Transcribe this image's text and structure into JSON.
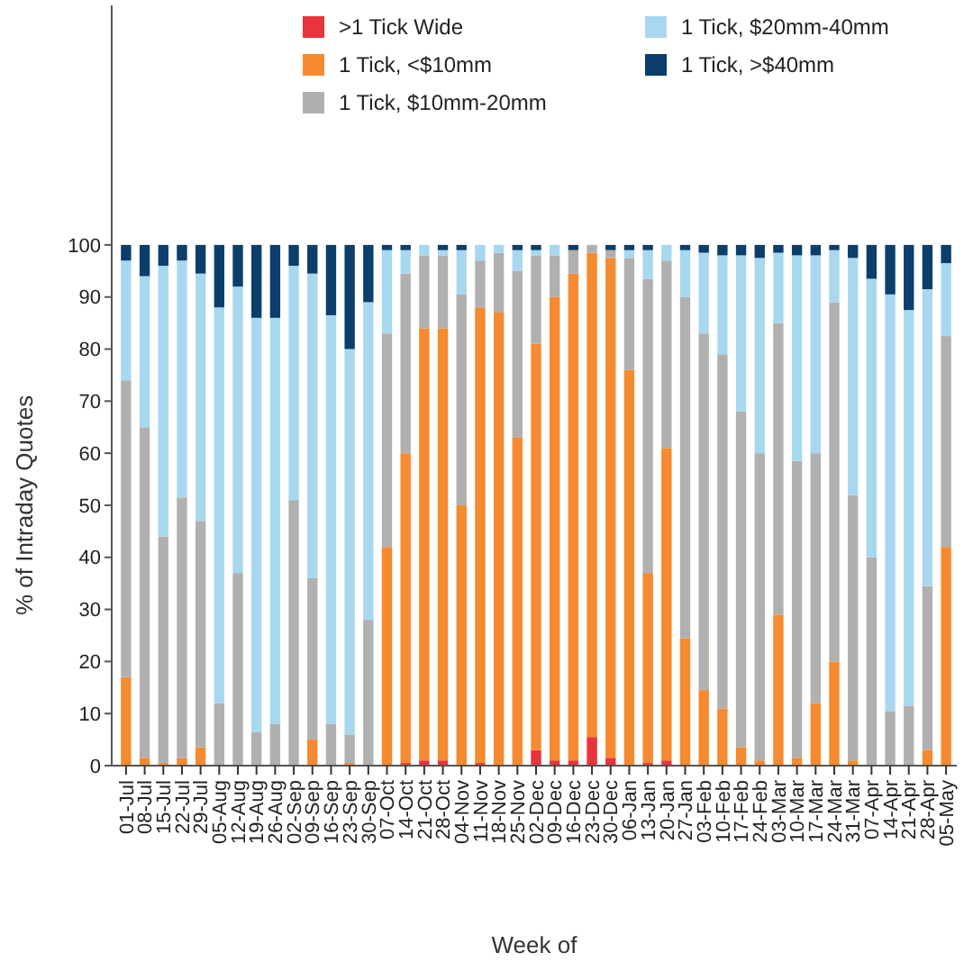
{
  "chart_data": {
    "type": "bar",
    "stacked": true,
    "xlabel": "Week of",
    "ylabel": "% of Intraday Quotes",
    "categories": [
      "01-Jul",
      "08-Jul",
      "15-Jul",
      "22-Jul",
      "29-Jul",
      "05-Aug",
      "12-Aug",
      "19-Aug",
      "26-Aug",
      "02-Sep",
      "09-Sep",
      "16-Sep",
      "23-Sep",
      "30-Sep",
      "07-Oct",
      "14-Oct",
      "21-Oct",
      "28-Oct",
      "04-Nov",
      "11-Nov",
      "18-Nov",
      "25-Nov",
      "02-Dec",
      "09-Dec",
      "16-Dec",
      "23-Dec",
      "30-Dec",
      "06-Jan",
      "13-Jan",
      "20-Jan",
      "27-Jan",
      "03-Feb",
      "10-Feb",
      "17-Feb",
      "24-Feb",
      "03-Mar",
      "10-Mar",
      "17-Mar",
      "24-Mar",
      "31-Mar",
      "07-Apr",
      "14-Apr",
      "21-Apr",
      "28-Apr",
      "05-May"
    ],
    "series": [
      {
        "name": ">1 Tick Wide",
        "color": "#e8343a",
        "values": [
          0,
          0,
          0,
          0,
          0,
          0,
          0,
          0,
          0,
          0,
          0,
          0,
          0,
          0,
          0,
          0.5,
          1,
          1,
          0,
          0.5,
          0,
          0,
          3,
          1,
          1,
          5.5,
          1.5,
          0,
          0.5,
          1,
          0,
          0,
          0,
          0,
          0,
          0,
          0,
          0,
          0,
          0,
          0,
          0,
          0,
          0,
          0
        ]
      },
      {
        "name": "1 Tick, <$10mm",
        "color": "#f58a2e",
        "values": [
          17,
          1.5,
          0.5,
          1.5,
          3.5,
          0,
          0,
          0,
          0,
          0,
          5,
          0,
          0.5,
          0,
          42,
          59.5,
          83,
          83,
          50,
          87.5,
          87,
          63,
          78,
          89,
          93.5,
          93,
          96,
          76,
          36.5,
          60,
          24.5,
          14.5,
          11,
          3.5,
          1,
          29,
          1.5,
          12,
          20,
          1,
          0,
          0,
          0,
          3,
          42
        ]
      },
      {
        "name": "1 Tick, $10mm-20mm",
        "color": "#b0b0b0",
        "values": [
          57,
          63.5,
          43.5,
          50,
          43.5,
          12,
          37,
          6.5,
          8,
          51,
          31,
          8,
          5.5,
          28,
          41,
          34.5,
          14,
          14,
          40.5,
          9,
          11.5,
          32,
          17,
          8,
          4.5,
          1.5,
          1.5,
          21.5,
          56.5,
          36,
          65.5,
          68.5,
          68,
          64.5,
          59,
          56,
          57,
          48,
          69,
          51,
          40,
          10.5,
          11.5,
          31.5,
          40.5
        ]
      },
      {
        "name": "1 Tick, $20mm-40mm",
        "color": "#a8d8f0",
        "values": [
          23,
          29,
          52,
          45.5,
          47.5,
          76,
          55,
          79.5,
          78,
          45,
          58.5,
          78.5,
          74,
          61,
          16,
          4.5,
          2,
          1,
          8.5,
          3,
          1.5,
          4,
          1,
          2,
          0,
          0,
          0,
          1.5,
          5.5,
          3,
          9,
          15.5,
          19,
          30,
          37.5,
          13.5,
          39.5,
          38,
          10,
          45.5,
          53.5,
          80,
          76,
          57,
          14
        ]
      },
      {
        "name": "1 Tick, >$40mm",
        "color": "#0b3e6b",
        "values": [
          3,
          6,
          4,
          3,
          5.5,
          12,
          8,
          14,
          14,
          4,
          5.5,
          13.5,
          20,
          11,
          1,
          1,
          0,
          1,
          1,
          0,
          0,
          1,
          1,
          0,
          1,
          0,
          1,
          1,
          1,
          0,
          1,
          1.5,
          2,
          2,
          2.5,
          1.5,
          2,
          2,
          1,
          2.5,
          6.5,
          9.5,
          12.5,
          8.5,
          3.5
        ]
      }
    ],
    "ylim": [
      0,
      146
    ],
    "yticks": [
      0,
      10,
      20,
      30,
      40,
      50,
      60,
      70,
      80,
      90,
      100
    ],
    "grid": false,
    "legend": "top"
  }
}
